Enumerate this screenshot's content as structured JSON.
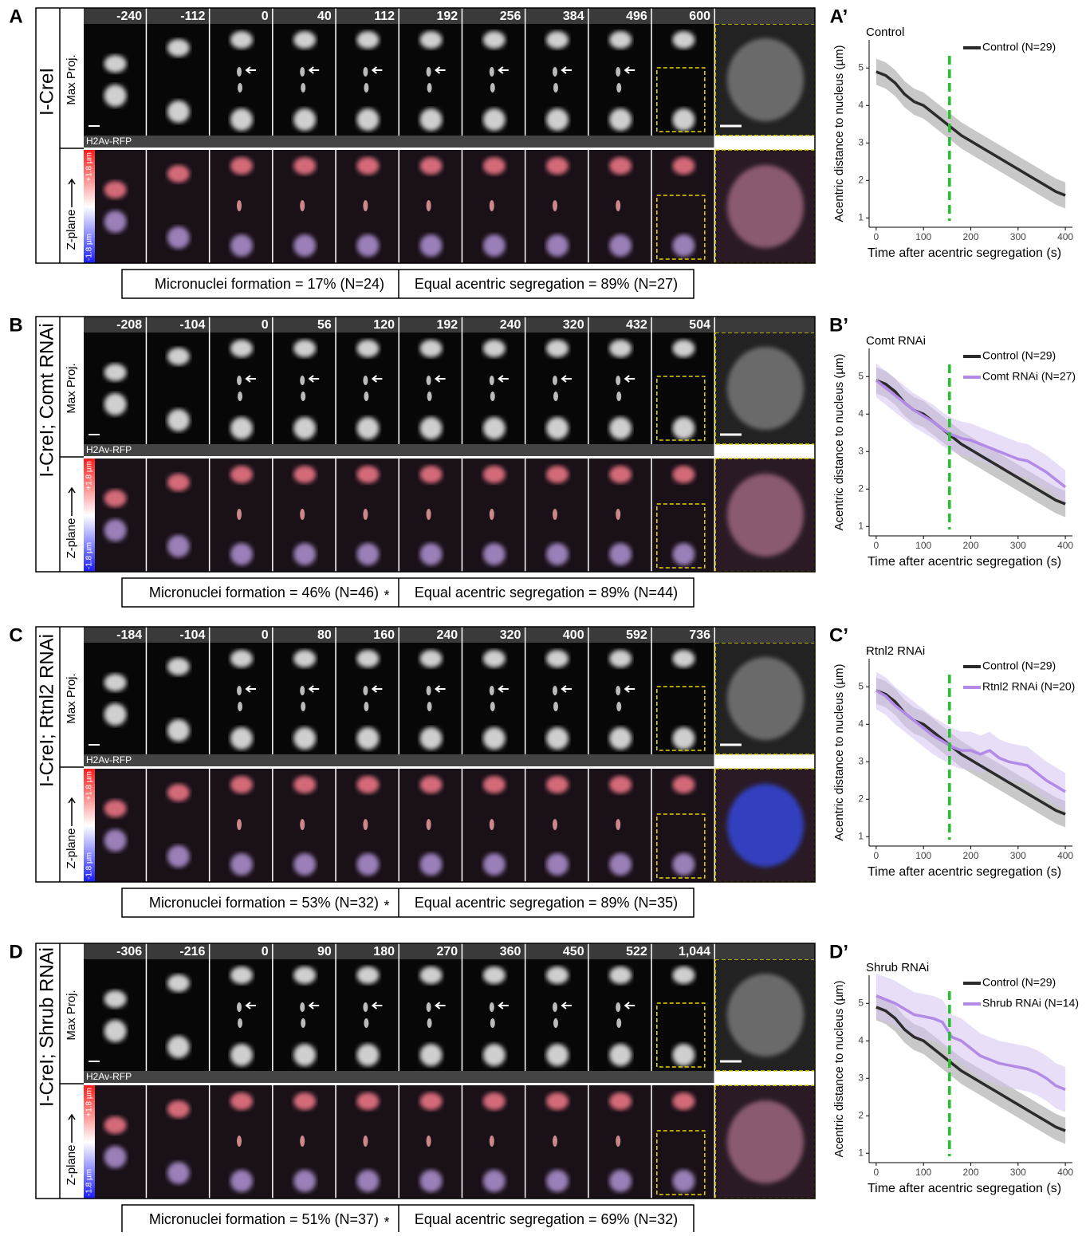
{
  "panels": [
    {
      "letter": "A",
      "genotype": "I-CreI",
      "times": [
        "-240",
        "-112",
        "0",
        "40",
        "112",
        "192",
        "256",
        "384",
        "496",
        "600"
      ],
      "max_label": "Max Proj.",
      "z_label": "Z-plane",
      "stain": "H2Av-RFP",
      "z_top": "+1.8 µm",
      "z_bottom": "-1.8 µm",
      "stats": [
        "Micronuclei formation = 17% (N=24)",
        "Equal acentric segregation = 89% (N=27)"
      ]
    },
    {
      "letter": "B",
      "genotype": "I-CreI; Comt RNAi",
      "times": [
        "-208",
        "-104",
        "0",
        "56",
        "120",
        "192",
        "240",
        "320",
        "432",
        "504"
      ],
      "max_label": "Max Proj.",
      "z_label": "Z-plane",
      "stain": "H2Av-RFP",
      "z_top": "+1.8 µm",
      "z_bottom": "-1.8 µm",
      "stats": [
        "Micronuclei formation = 46% (N=46)",
        "Equal acentric segregation = 89% (N=44)"
      ],
      "star": "*"
    },
    {
      "letter": "C",
      "genotype": "I-CreI; Rtnl2 RNAi",
      "times": [
        "-184",
        "-104",
        "0",
        "80",
        "160",
        "240",
        "320",
        "400",
        "592",
        "736"
      ],
      "max_label": "Max Proj.",
      "z_label": "Z-plane",
      "stain": "H2Av-RFP",
      "z_top": "+1.8 µm",
      "z_bottom": "-1.8 µm",
      "stats": [
        "Micronuclei formation = 53% (N=32)",
        "Equal acentric segregation = 89% (N=35)"
      ],
      "star": "*"
    },
    {
      "letter": "D",
      "genotype": "I-CreI; Shrub RNAi",
      "times": [
        "-306",
        "-216",
        "0",
        "90",
        "180",
        "270",
        "360",
        "450",
        "522",
        "1,044"
      ],
      "max_label": "Max Proj.",
      "z_label": "Z-plane",
      "stain": "H2Av-RFP",
      "z_top": "+1.8 µm",
      "z_bottom": "-1.8 µm",
      "stats": [
        "Micronuclei formation = 51% (N=37)",
        "Equal acentric segregation = 69% (N=32)"
      ],
      "star": "*"
    }
  ],
  "chart_data": [
    {
      "type": "line",
      "label": "A’",
      "title": "Control",
      "xlabel": "Time after acentric segregation (s)",
      "ylabel": "Acentric distance to nucleus (µm)",
      "xlim": [
        -15,
        415
      ],
      "ylim": [
        0.75,
        5.75
      ],
      "xticks": [
        0,
        100,
        200,
        300,
        400
      ],
      "yticks": [
        1,
        2,
        3,
        4,
        5
      ],
      "vline": 155,
      "vline_color": "#22c02a",
      "x": [
        0,
        20,
        40,
        60,
        80,
        100,
        120,
        140,
        160,
        180,
        200,
        220,
        240,
        260,
        280,
        300,
        320,
        340,
        360,
        380,
        400
      ],
      "series": [
        {
          "name": "Control (N=29)",
          "color": "#2b2b2b",
          "band_color": "#9a9a9a",
          "error": 0.35,
          "values": [
            4.9,
            4.8,
            4.6,
            4.3,
            4.1,
            4.0,
            3.8,
            3.6,
            3.4,
            3.2,
            3.05,
            2.9,
            2.75,
            2.6,
            2.45,
            2.3,
            2.15,
            2.0,
            1.85,
            1.7,
            1.6
          ]
        }
      ]
    },
    {
      "type": "line",
      "label": "B’",
      "title": "Comt RNAi",
      "xlabel": "Time after acentric segregation (s)",
      "ylabel": "Acentric distance to nucleus (µm)",
      "xlim": [
        -15,
        415
      ],
      "ylim": [
        0.75,
        5.75
      ],
      "xticks": [
        0,
        100,
        200,
        300,
        400
      ],
      "yticks": [
        1,
        2,
        3,
        4,
        5
      ],
      "vline": 155,
      "vline_color": "#22c02a",
      "x": [
        0,
        20,
        40,
        60,
        80,
        100,
        120,
        140,
        160,
        180,
        200,
        220,
        240,
        260,
        280,
        300,
        320,
        340,
        360,
        380,
        400
      ],
      "series": [
        {
          "name": "Control (N=29)",
          "color": "#2b2b2b",
          "band_color": "#9a9a9a",
          "error": 0.35,
          "values": [
            4.9,
            4.8,
            4.6,
            4.3,
            4.1,
            4.0,
            3.8,
            3.6,
            3.4,
            3.2,
            3.05,
            2.9,
            2.75,
            2.6,
            2.45,
            2.3,
            2.15,
            2.0,
            1.85,
            1.7,
            1.6
          ]
        },
        {
          "name": "Comt RNAi (N=27)",
          "color": "#b38be6",
          "band_color": "#d6c2f2",
          "error": 0.45,
          "values": [
            4.9,
            4.7,
            4.5,
            4.3,
            4.1,
            3.95,
            3.8,
            3.6,
            3.45,
            3.35,
            3.3,
            3.2,
            3.1,
            3.0,
            2.9,
            2.8,
            2.75,
            2.6,
            2.45,
            2.25,
            2.05
          ]
        }
      ]
    },
    {
      "type": "line",
      "label": "C’",
      "title": "Rtnl2 RNAi",
      "xlabel": "Time after acentric segregation (s)",
      "ylabel": "Acentric distance to nucleus (µm)",
      "xlim": [
        -15,
        415
      ],
      "ylim": [
        0.75,
        5.75
      ],
      "xticks": [
        0,
        100,
        200,
        300,
        400
      ],
      "yticks": [
        1,
        2,
        3,
        4,
        5
      ],
      "vline": 155,
      "vline_color": "#22c02a",
      "x": [
        0,
        20,
        40,
        60,
        80,
        100,
        120,
        140,
        160,
        180,
        200,
        220,
        240,
        260,
        280,
        300,
        320,
        340,
        360,
        380,
        400
      ],
      "series": [
        {
          "name": "Control (N=29)",
          "color": "#2b2b2b",
          "band_color": "#9a9a9a",
          "error": 0.35,
          "values": [
            4.9,
            4.8,
            4.6,
            4.3,
            4.1,
            4.0,
            3.8,
            3.6,
            3.4,
            3.2,
            3.05,
            2.9,
            2.75,
            2.6,
            2.45,
            2.3,
            2.15,
            2.0,
            1.85,
            1.7,
            1.6
          ]
        },
        {
          "name": "Rtnl2 RNAi (N=20)",
          "color": "#b38be6",
          "band_color": "#d6c2f2",
          "error": 0.5,
          "values": [
            4.9,
            4.75,
            4.5,
            4.3,
            4.1,
            3.9,
            3.7,
            3.55,
            3.4,
            3.3,
            3.3,
            3.2,
            3.3,
            3.1,
            3.0,
            2.95,
            2.9,
            2.7,
            2.5,
            2.35,
            2.2
          ]
        }
      ]
    },
    {
      "type": "line",
      "label": "D’",
      "title": "Shrub RNAi",
      "xlabel": "Time after acentric segregation (s)",
      "ylabel": "Acentric distance to nucleus (µm)",
      "xlim": [
        -15,
        415
      ],
      "ylim": [
        0.75,
        5.75
      ],
      "xticks": [
        0,
        100,
        200,
        300,
        400
      ],
      "yticks": [
        1,
        2,
        3,
        4,
        5
      ],
      "vline": 155,
      "vline_color": "#22c02a",
      "x": [
        0,
        20,
        40,
        60,
        80,
        100,
        120,
        140,
        160,
        180,
        200,
        220,
        240,
        260,
        280,
        300,
        320,
        340,
        360,
        380,
        400
      ],
      "series": [
        {
          "name": "Control (N=29)",
          "color": "#2b2b2b",
          "band_color": "#9a9a9a",
          "error": 0.35,
          "values": [
            4.9,
            4.8,
            4.6,
            4.3,
            4.1,
            4.0,
            3.8,
            3.6,
            3.4,
            3.2,
            3.05,
            2.9,
            2.75,
            2.6,
            2.45,
            2.3,
            2.15,
            2.0,
            1.85,
            1.7,
            1.6
          ]
        },
        {
          "name": "Shrub RNAi (N=14)",
          "color": "#b38be6",
          "band_color": "#d6c2f2",
          "error": 0.6,
          "values": [
            5.2,
            5.1,
            5.0,
            4.85,
            4.7,
            4.65,
            4.6,
            4.5,
            4.1,
            4.0,
            3.8,
            3.6,
            3.5,
            3.4,
            3.35,
            3.3,
            3.25,
            3.15,
            3.0,
            2.8,
            2.7
          ]
        }
      ]
    }
  ]
}
